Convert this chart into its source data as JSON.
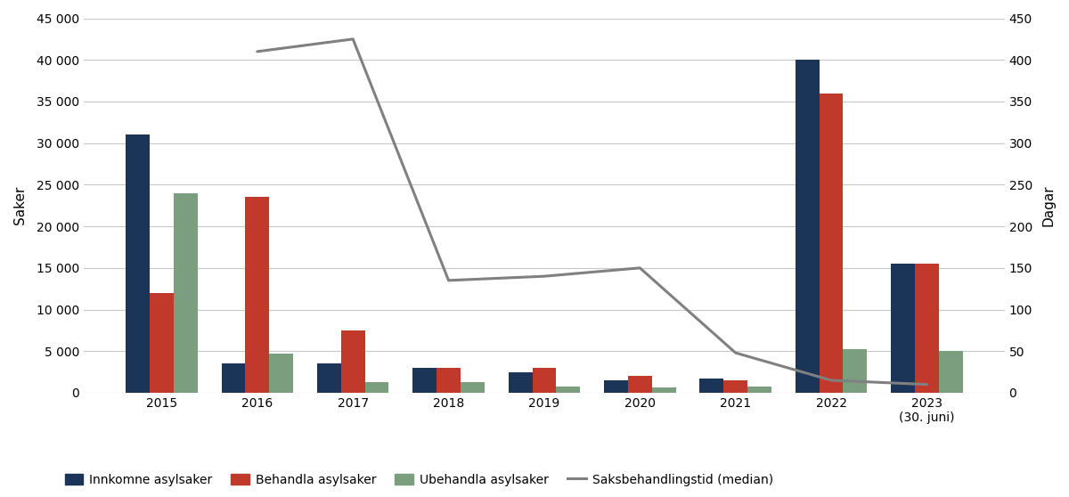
{
  "years": [
    "2015",
    "2016",
    "2017",
    "2018",
    "2019",
    "2020",
    "2021",
    "2022",
    "2023\n(30. juni)"
  ],
  "innkomne": [
    31000,
    3500,
    3500,
    3000,
    2500,
    1500,
    1700,
    40000,
    15500
  ],
  "behandla": [
    12000,
    23500,
    7500,
    3000,
    3000,
    2000,
    1500,
    36000,
    15500
  ],
  "ubehandla": [
    24000,
    4700,
    1300,
    1300,
    800,
    600,
    700,
    5200,
    5000
  ],
  "saksbehandling_x": [
    1,
    2,
    3,
    4,
    5,
    6,
    7,
    8
  ],
  "saksbehandling_y": [
    410,
    425,
    135,
    140,
    150,
    48,
    15,
    10
  ],
  "color_innkomne": "#1a3557",
  "color_behandla": "#c0392b",
  "color_ubehandla": "#7a9e7e",
  "color_line": "#808080",
  "ylabel_left": "Saker",
  "ylabel_right": "Dagar",
  "ylim_left": [
    0,
    45000
  ],
  "ylim_right": [
    0,
    450
  ],
  "yticks_left": [
    0,
    5000,
    10000,
    15000,
    20000,
    25000,
    30000,
    35000,
    40000,
    45000
  ],
  "yticks_right": [
    0,
    50,
    100,
    150,
    200,
    250,
    300,
    350,
    400,
    450
  ],
  "legend_innkomne": "Innkomne asylsaker",
  "legend_behandla": "Behandla asylsaker",
  "legend_ubehandla": "Ubehandla asylsaker",
  "legend_line": "Saksbehandlingstid (median)",
  "bar_width": 0.25,
  "background_color": "#ffffff",
  "grid_color": "#c8c8c8"
}
